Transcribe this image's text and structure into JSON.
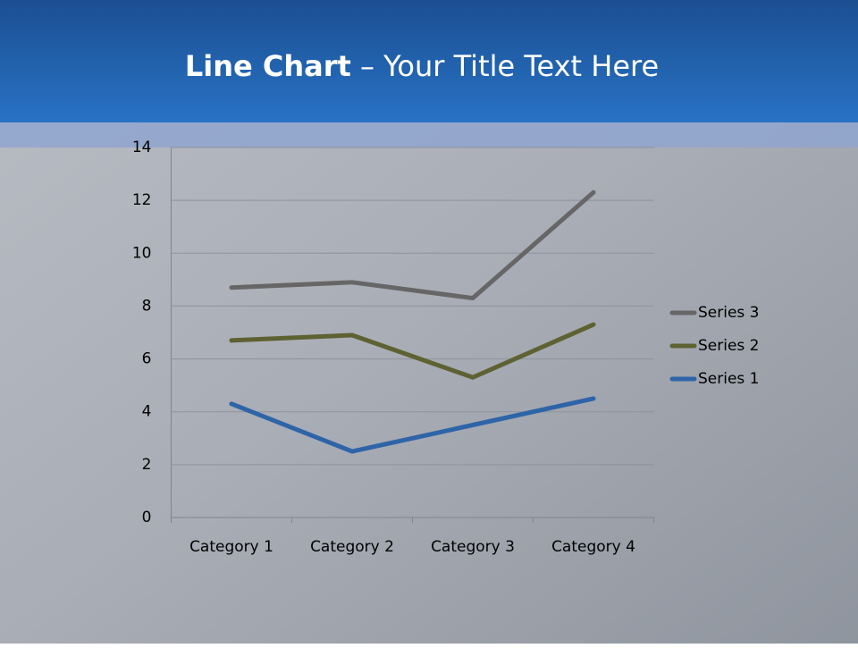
{
  "chart_data": {
    "type": "line",
    "stacked": true,
    "title": [
      "Line Chart",
      "– Your Title Text Here"
    ],
    "categories": [
      "Category 1",
      "Category 2",
      "Category 3",
      "Category 4"
    ],
    "series": [
      {
        "name": "Series 1",
        "color": "#2e64a8",
        "values": [
          4.3,
          2.5,
          3.5,
          4.5
        ]
      },
      {
        "name": "Series 2",
        "color": "#5e6131",
        "values": [
          2.4,
          4.4,
          1.8,
          2.8
        ]
      },
      {
        "name": "Series 3",
        "color": "#666666",
        "values": [
          2,
          2,
          3,
          5
        ]
      }
    ],
    "ylim": [
      0,
      14
    ],
    "yticks": [
      0,
      2,
      4,
      6,
      8,
      10,
      12,
      14
    ],
    "grid": true,
    "legend": "right"
  }
}
